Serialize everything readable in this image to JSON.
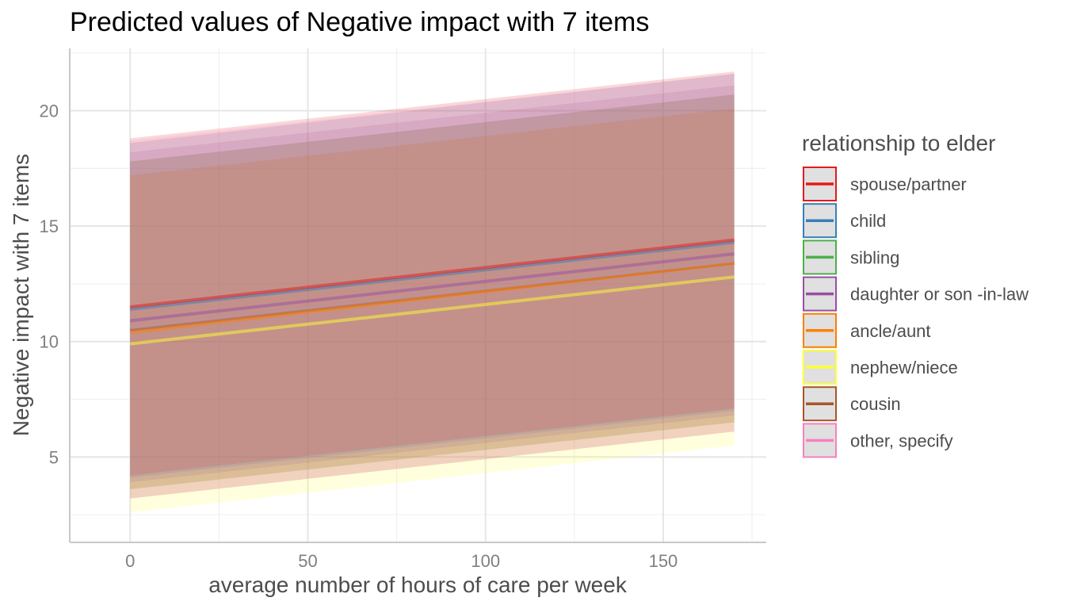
{
  "chart_data": {
    "type": "line",
    "title": "Predicted values of Negative impact with 7 items",
    "xlabel": "average number of hours of care per week",
    "ylabel": "Negative impact with 7 items",
    "xlim": [
      -17,
      179
    ],
    "ylim": [
      1.3,
      22.7
    ],
    "x_ticks": [
      0,
      50,
      100,
      150
    ],
    "x_minor_ticks": [
      25,
      75,
      125,
      175
    ],
    "y_ticks": [
      5,
      10,
      15,
      20
    ],
    "y_minor_ticks": [
      2.5,
      7.5,
      12.5,
      17.5,
      22.5
    ],
    "grid": true,
    "legend": {
      "title": "relationship to elder",
      "position": "right"
    },
    "series": [
      {
        "name": "spouse/partner",
        "color": "#E41A1C",
        "x": [
          0,
          170
        ],
        "y": [
          11.5,
          14.4
        ],
        "lower": [
          4.2,
          7.1
        ],
        "upper": [
          18.8,
          21.7
        ]
      },
      {
        "name": "child",
        "color": "#377EB8",
        "x": [
          0,
          170
        ],
        "y": [
          11.4,
          14.3
        ],
        "lower": [
          4.1,
          7.0
        ],
        "upper": [
          18.6,
          21.6
        ]
      },
      {
        "name": "sibling",
        "color": "#4DAF4A",
        "x": [
          0,
          170
        ],
        "y": [
          10.6,
          13.5
        ],
        "lower": [
          3.6,
          6.5
        ],
        "upper": [
          17.8,
          20.7
        ]
      },
      {
        "name": "daughter or son -in-law",
        "color": "#984EA3",
        "x": [
          0,
          170
        ],
        "y": [
          10.9,
          13.8
        ],
        "lower": [
          3.9,
          6.8
        ],
        "upper": [
          18.2,
          21.1
        ]
      },
      {
        "name": "ancle/aunt",
        "color": "#FF7F00",
        "x": [
          0,
          170
        ],
        "y": [
          10.4,
          13.4
        ],
        "lower": [
          3.6,
          6.5
        ],
        "upper": [
          17.2,
          20.1
        ]
      },
      {
        "name": "nephew/niece",
        "color": "#FFFF33",
        "x": [
          0,
          170
        ],
        "y": [
          9.9,
          12.8
        ],
        "lower": [
          2.6,
          5.5
        ],
        "upper": [
          17.2,
          20.1
        ]
      },
      {
        "name": "cousin",
        "color": "#A65628",
        "x": [
          0,
          170
        ],
        "y": [
          10.5,
          13.4
        ],
        "lower": [
          3.2,
          6.1
        ],
        "upper": [
          17.8,
          20.7
        ]
      },
      {
        "name": "other, specify",
        "color": "#F781BF",
        "x": [
          0,
          170
        ],
        "y": [
          10.6,
          13.5
        ],
        "lower": [
          3.2,
          6.1
        ],
        "upper": [
          18.7,
          21.6
        ]
      }
    ]
  }
}
